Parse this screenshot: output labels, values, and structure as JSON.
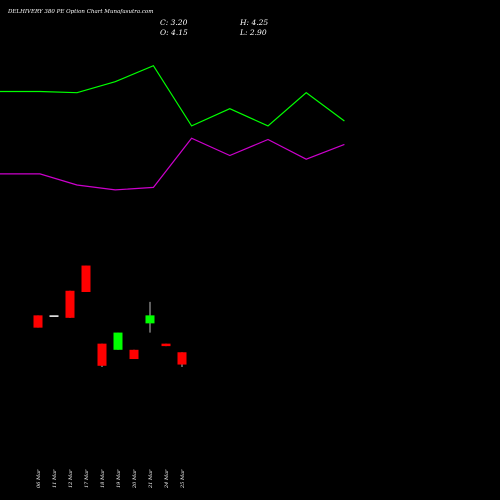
{
  "chart_data": {
    "type": "candlestick",
    "title": "DELHIVERY 380 PE Option Chart Munafasutra.com",
    "ohlc_readout": {
      "close": "C: 3.20",
      "high": "H: 4.25",
      "open": "O: 4.15",
      "low": "L: 2.90"
    },
    "categories": [
      "06 Mar",
      "11 Mar",
      "12 Mar",
      "17 Mar",
      "18 Mar",
      "19 Mar",
      "20 Mar",
      "21 Mar",
      "24 Mar",
      "25 Mar"
    ],
    "candles": [
      {
        "open": 8.8,
        "high": 8.8,
        "low": 7.8,
        "close": 7.8
      },
      {
        "open": 8.8,
        "high": 8.8,
        "low": 8.8,
        "close": 8.8
      },
      {
        "open": 10.8,
        "high": 10.8,
        "low": 8.6,
        "close": 8.6
      },
      {
        "open": 12.85,
        "high": 12.85,
        "low": 10.7,
        "close": 10.7
      },
      {
        "open": 6.5,
        "high": 6.5,
        "low": 4.6,
        "close": 4.7
      },
      {
        "open": 6.0,
        "high": 7.4,
        "low": 6.0,
        "close": 7.4
      },
      {
        "open": 6.0,
        "high": 6.0,
        "low": 5.25,
        "close": 5.25
      },
      {
        "open": 8.15,
        "high": 9.9,
        "low": 7.4,
        "close": 8.8
      },
      {
        "open": 6.5,
        "high": 6.5,
        "low": 6.3,
        "close": 6.3
      },
      {
        "open": 5.8,
        "high": 5.8,
        "low": 4.6,
        "close": 4.8
      }
    ],
    "lines": [
      {
        "color": "#00ff00",
        "values": [
          27.0,
          27.0,
          26.9,
          27.8,
          29.1,
          24.2,
          25.6,
          24.2,
          26.9,
          24.6
        ]
      },
      {
        "color": "#cc00cc",
        "values": [
          20.3,
          20.3,
          19.4,
          19.0,
          19.2,
          23.2,
          21.8,
          23.1,
          21.5,
          22.7
        ]
      },
      {
        "values_note": ""
      }
    ],
    "ylim": [
      0,
      32
    ],
    "grid": false,
    "colors": {
      "up": "#00ff00",
      "down": "#ff0000",
      "background": "#000000",
      "text": "#ffffff"
    }
  }
}
